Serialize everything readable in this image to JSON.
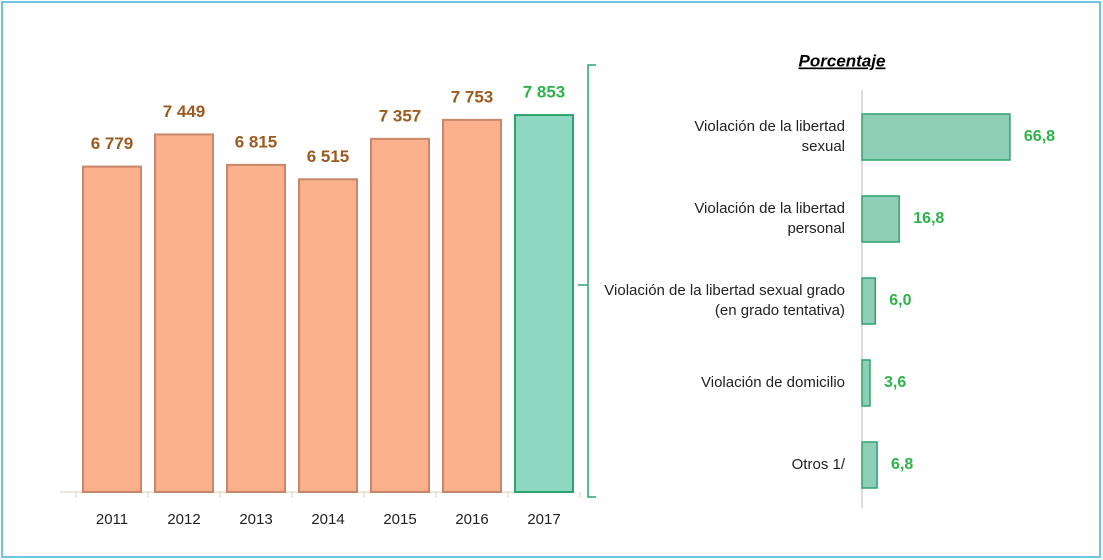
{
  "chart_data": [
    {
      "type": "bar",
      "categories": [
        "2011",
        "2012",
        "2013",
        "2014",
        "2015",
        "2016",
        "2017"
      ],
      "values": [
        6779,
        7449,
        6815,
        6515,
        7357,
        7753,
        7853
      ],
      "value_labels": [
        "6 779",
        "7 449",
        "6 815",
        "6 515",
        "7 357",
        "7 753",
        "7 853"
      ],
      "colors": [
        "#fbb08c",
        "#fbb08c",
        "#fbb08c",
        "#fbb08c",
        "#fbb08c",
        "#fbb08c",
        "#8fd8c2"
      ],
      "ylim": [
        0,
        8000
      ]
    },
    {
      "type": "hbar",
      "title": "Porcentaje",
      "categories": [
        "Violación de la libertad sexual",
        "Violación de la libertad personal",
        "Violación de la libertad sexual grado (en grado tentativa)",
        "Violación de domicilio",
        "Otros 1/"
      ],
      "values": [
        66.8,
        16.8,
        6.0,
        3.6,
        6.8
      ],
      "value_labels": [
        "66,8",
        "16,8",
        "6,0",
        "3,6",
        "6,8"
      ],
      "color": "#8fcfb7",
      "xlim": [
        0,
        70
      ]
    }
  ]
}
